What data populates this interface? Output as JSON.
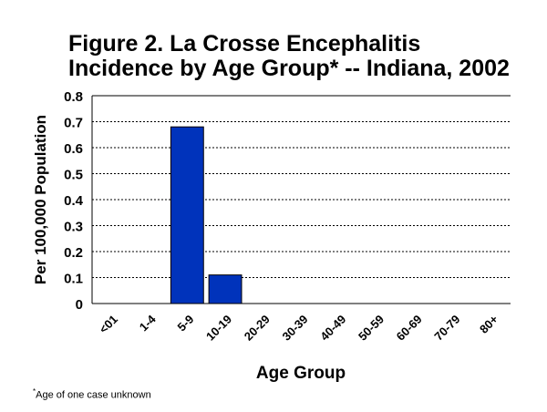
{
  "chart_data": {
    "type": "bar",
    "title_line1": "Figure 2.  La Crosse Encephalitis",
    "title_line2": "Incidence by Age Group* -- Indiana, 2002",
    "xlabel": "Age Group",
    "ylabel": "Per 100,000 Population",
    "categories": [
      "<01",
      "1-4",
      "5-9",
      "10-19",
      "20-29",
      "30-39",
      "40-49",
      "50-59",
      "60-69",
      "70-79",
      "80+"
    ],
    "values": [
      0,
      0,
      0.68,
      0.11,
      0,
      0,
      0,
      0,
      0,
      0,
      0
    ],
    "ylim": [
      0,
      0.8
    ],
    "yticks": [
      "0",
      "0.1",
      "0.2",
      "0.3",
      "0.4",
      "0.5",
      "0.6",
      "0.7",
      "0.8"
    ],
    "grid": true,
    "bar_color": "#0033BB",
    "footnote_mark": "*",
    "footnote": "Age of one case unknown"
  }
}
